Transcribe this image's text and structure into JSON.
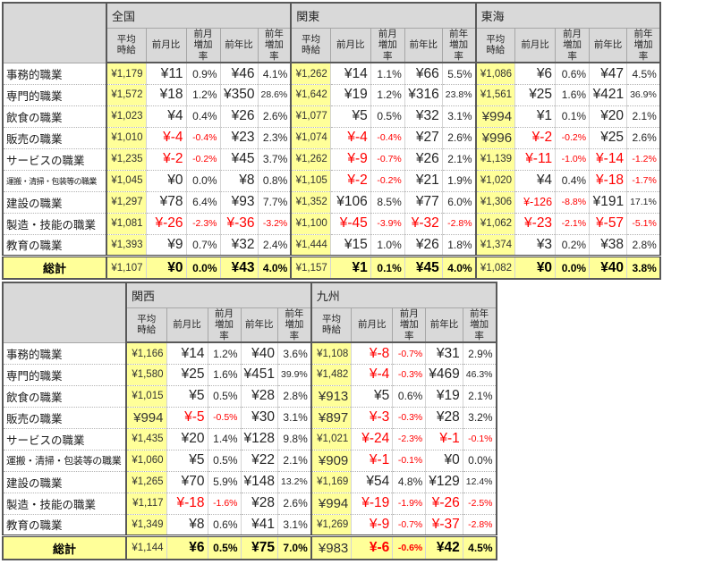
{
  "colors": {
    "highlight_yellow": "#FFFF99",
    "header_gray": "#D9D9D9",
    "negative_red": "#FF0000",
    "border_dark": "#595959",
    "text": "#262626"
  },
  "chart_data": [
    {
      "type": "table",
      "corner_label": "",
      "sub_columns": [
        "平均\n時給",
        "前月比",
        "前月\n増加率",
        "前年比",
        "前年\n増加率"
      ],
      "row_labels": [
        "事務的職業",
        "専門的職業",
        "飲食の職業",
        "販売の職業",
        "サービスの職業",
        "運搬・清掃・包装等の職業",
        "建設の職業",
        "製造・技能の職業",
        "教育の職業"
      ],
      "total_label": "総計",
      "regions": [
        {
          "name": "全国",
          "rows": [
            [
              "¥1,179",
              "¥11",
              "0.9%",
              "¥46",
              "4.1%"
            ],
            [
              "¥1,572",
              "¥18",
              "1.2%",
              "¥350",
              "28.6%"
            ],
            [
              "¥1,023",
              "¥4",
              "0.4%",
              "¥26",
              "2.6%"
            ],
            [
              "¥1,010",
              "¥-4",
              "-0.4%",
              "¥23",
              "2.3%"
            ],
            [
              "¥1,235",
              "¥-2",
              "-0.2%",
              "¥45",
              "3.7%"
            ],
            [
              "¥1,045",
              "¥0",
              "0.0%",
              "¥8",
              "0.8%"
            ],
            [
              "¥1,297",
              "¥78",
              "6.4%",
              "¥93",
              "7.7%"
            ],
            [
              "¥1,081",
              "¥-26",
              "-2.3%",
              "¥-36",
              "-3.2%"
            ],
            [
              "¥1,393",
              "¥9",
              "0.7%",
              "¥32",
              "2.4%"
            ]
          ],
          "total": [
            "¥1,107",
            "¥0",
            "0.0%",
            "¥43",
            "4.0%"
          ]
        },
        {
          "name": "関東",
          "rows": [
            [
              "¥1,262",
              "¥14",
              "1.1%",
              "¥66",
              "5.5%"
            ],
            [
              "¥1,642",
              "¥19",
              "1.2%",
              "¥316",
              "23.8%"
            ],
            [
              "¥1,077",
              "¥5",
              "0.5%",
              "¥32",
              "3.1%"
            ],
            [
              "¥1,074",
              "¥-4",
              "-0.4%",
              "¥27",
              "2.6%"
            ],
            [
              "¥1,262",
              "¥-9",
              "-0.7%",
              "¥26",
              "2.1%"
            ],
            [
              "¥1,105",
              "¥-2",
              "-0.2%",
              "¥21",
              "1.9%"
            ],
            [
              "¥1,352",
              "¥106",
              "8.5%",
              "¥77",
              "6.0%"
            ],
            [
              "¥1,100",
              "¥-45",
              "-3.9%",
              "¥-32",
              "-2.8%"
            ],
            [
              "¥1,444",
              "¥15",
              "1.0%",
              "¥26",
              "1.8%"
            ]
          ],
          "total": [
            "¥1,157",
            "¥1",
            "0.1%",
            "¥45",
            "4.0%"
          ]
        },
        {
          "name": "東海",
          "rows": [
            [
              "¥1,086",
              "¥6",
              "0.6%",
              "¥47",
              "4.5%"
            ],
            [
              "¥1,561",
              "¥25",
              "1.6%",
              "¥421",
              "36.9%"
            ],
            [
              "¥994",
              "¥1",
              "0.1%",
              "¥20",
              "2.1%"
            ],
            [
              "¥996",
              "¥-2",
              "-0.2%",
              "¥25",
              "2.6%"
            ],
            [
              "¥1,139",
              "¥-11",
              "-1.0%",
              "¥-14",
              "-1.2%"
            ],
            [
              "¥1,020",
              "¥4",
              "0.4%",
              "¥-18",
              "-1.7%"
            ],
            [
              "¥1,306",
              "¥-126",
              "-8.8%",
              "¥191",
              "17.1%"
            ],
            [
              "¥1,062",
              "¥-23",
              "-2.1%",
              "¥-57",
              "-5.1%"
            ],
            [
              "¥1,374",
              "¥3",
              "0.2%",
              "¥38",
              "2.8%"
            ]
          ],
          "total": [
            "¥1,082",
            "¥0",
            "0.0%",
            "¥40",
            "3.8%"
          ]
        }
      ]
    },
    {
      "type": "table",
      "corner_label": "",
      "sub_columns": [
        "平均\n時給",
        "前月比",
        "前月\n増加率",
        "前年比",
        "前年\n増加率"
      ],
      "row_labels": [
        "事務的職業",
        "専門的職業",
        "飲食の職業",
        "販売の職業",
        "サービスの職業",
        "運搬・清掃・包装等の職業",
        "建設の職業",
        "製造・技能の職業",
        "教育の職業"
      ],
      "total_label": "総計",
      "regions": [
        {
          "name": "関西",
          "rows": [
            [
              "¥1,166",
              "¥14",
              "1.2%",
              "¥40",
              "3.6%"
            ],
            [
              "¥1,580",
              "¥25",
              "1.6%",
              "¥451",
              "39.9%"
            ],
            [
              "¥1,015",
              "¥5",
              "0.5%",
              "¥28",
              "2.8%"
            ],
            [
              "¥994",
              "¥-5",
              "-0.5%",
              "¥30",
              "3.1%"
            ],
            [
              "¥1,435",
              "¥20",
              "1.4%",
              "¥128",
              "9.8%"
            ],
            [
              "¥1,060",
              "¥5",
              "0.5%",
              "¥22",
              "2.1%"
            ],
            [
              "¥1,265",
              "¥70",
              "5.9%",
              "¥148",
              "13.2%"
            ],
            [
              "¥1,117",
              "¥-18",
              "-1.6%",
              "¥28",
              "2.6%"
            ],
            [
              "¥1,349",
              "¥8",
              "0.6%",
              "¥41",
              "3.1%"
            ]
          ],
          "total": [
            "¥1,144",
            "¥6",
            "0.5%",
            "¥75",
            "7.0%"
          ]
        },
        {
          "name": "九州",
          "rows": [
            [
              "¥1,108",
              "¥-8",
              "-0.7%",
              "¥31",
              "2.9%"
            ],
            [
              "¥1,482",
              "¥-4",
              "-0.3%",
              "¥469",
              "46.3%"
            ],
            [
              "¥913",
              "¥5",
              "0.6%",
              "¥19",
              "2.1%"
            ],
            [
              "¥897",
              "¥-3",
              "-0.3%",
              "¥28",
              "3.2%"
            ],
            [
              "¥1,021",
              "¥-24",
              "-2.3%",
              "¥-1",
              "-0.1%"
            ],
            [
              "¥909",
              "¥-1",
              "-0.1%",
              "¥0",
              "0.0%"
            ],
            [
              "¥1,169",
              "¥54",
              "4.8%",
              "¥129",
              "12.4%"
            ],
            [
              "¥994",
              "¥-19",
              "-1.9%",
              "¥-26",
              "-2.5%"
            ],
            [
              "¥1,269",
              "¥-9",
              "-0.7%",
              "¥-37",
              "-2.8%"
            ]
          ],
          "total": [
            "¥983",
            "¥-6",
            "-0.6%",
            "¥42",
            "4.5%"
          ]
        }
      ]
    }
  ]
}
